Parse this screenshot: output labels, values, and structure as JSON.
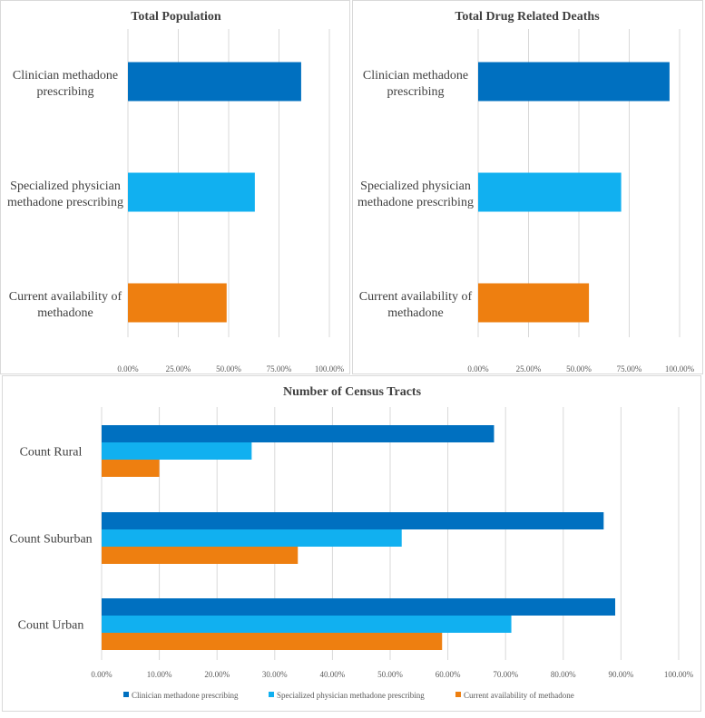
{
  "colors": {
    "clinician": "#0070C0",
    "specialized": "#11B0F0",
    "current": "#EE7F10"
  },
  "chart_data": [
    {
      "type": "bar",
      "orientation": "horizontal",
      "title": "Total Population",
      "categories": [
        [
          "Clinician methadone",
          "prescribing"
        ],
        [
          "Specialized physician",
          "methadone prescribing"
        ],
        [
          "Current availability of",
          "methadone"
        ]
      ],
      "values": [
        0.86,
        0.63,
        0.49
      ],
      "xlim": [
        0,
        1
      ],
      "ticks": [
        "0.00%",
        "25.00%",
        "50.00%",
        "75.00%",
        "100.00%"
      ],
      "tick_values": [
        0,
        0.25,
        0.5,
        0.75,
        1
      ],
      "grid": true
    },
    {
      "type": "bar",
      "orientation": "horizontal",
      "title": "Total Drug Related Deaths",
      "categories": [
        [
          "Clinician methadone",
          "prescribing"
        ],
        [
          "Specialized physician",
          "methadone prescribing"
        ],
        [
          "Current availability of",
          "methadone"
        ]
      ],
      "values": [
        0.95,
        0.71,
        0.55
      ],
      "xlim": [
        0,
        1
      ],
      "ticks": [
        "0.00%",
        "25.00%",
        "50.00%",
        "75.00%",
        "100.00%"
      ],
      "tick_values": [
        0,
        0.25,
        0.5,
        0.75,
        1
      ],
      "grid": true
    },
    {
      "type": "bar",
      "orientation": "horizontal",
      "title": "Number of Census Tracts",
      "categories": [
        "Count Rural",
        "Count Suburban",
        "Count Urban"
      ],
      "series": [
        {
          "name": "Clinician methadone prescribing",
          "values": [
            0.68,
            0.87,
            0.89
          ]
        },
        {
          "name": "Specialized physician methadone prescribing",
          "values": [
            0.26,
            0.52,
            0.71
          ]
        },
        {
          "name": "Current availability of  methadone",
          "values": [
            0.1,
            0.34,
            0.59
          ]
        }
      ],
      "xlim": [
        0,
        1
      ],
      "ticks": [
        "0.00%",
        "10.00%",
        "20.00%",
        "30.00%",
        "40.00%",
        "50.00%",
        "60.00%",
        "70.00%",
        "80.00%",
        "90.00%",
        "100.00%"
      ],
      "tick_values": [
        0,
        0.1,
        0.2,
        0.3,
        0.4,
        0.5,
        0.6,
        0.7,
        0.8,
        0.9,
        1
      ],
      "legend": "bottom",
      "grid": true
    }
  ]
}
